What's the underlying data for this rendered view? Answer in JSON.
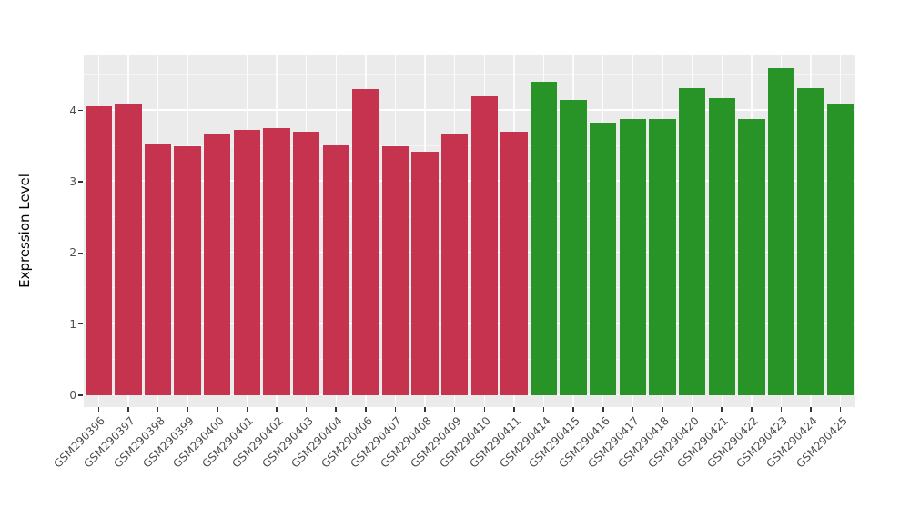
{
  "figure": {
    "background": "#FFFFFF",
    "panel_background": "#EBEBEB",
    "gridline_color": "#FFFFFF",
    "axis_text_color": "#4D4D4D",
    "tick_mark_color": "#333333"
  },
  "chart_data": {
    "type": "bar",
    "title": "",
    "xlabel": "",
    "ylabel": "Expression Level",
    "ylim": [
      0,
      4.78
    ],
    "yticks": [
      0,
      1,
      2,
      3,
      4
    ],
    "yticks_minor": [
      0.5,
      1.5,
      2.5,
      3.5,
      4.5
    ],
    "grid": true,
    "legend_position": "none",
    "categories": [
      "GSM290396",
      "GSM290397",
      "GSM290398",
      "GSM290399",
      "GSM290400",
      "GSM290401",
      "GSM290402",
      "GSM290403",
      "GSM290404",
      "GSM290406",
      "GSM290407",
      "GSM290408",
      "GSM290409",
      "GSM290410",
      "GSM290411",
      "GSM290414",
      "GSM290415",
      "GSM290416",
      "GSM290417",
      "GSM290418",
      "GSM290420",
      "GSM290421",
      "GSM290422",
      "GSM290423",
      "GSM290424",
      "GSM290425"
    ],
    "values": [
      4.06,
      4.08,
      3.53,
      3.49,
      3.66,
      3.72,
      3.75,
      3.7,
      3.51,
      4.3,
      3.49,
      3.42,
      3.67,
      4.2,
      3.7,
      4.4,
      4.15,
      3.83,
      3.88,
      3.88,
      4.31,
      4.17,
      3.88,
      4.59,
      4.31,
      4.09
    ],
    "groups": [
      "red",
      "red",
      "red",
      "red",
      "red",
      "red",
      "red",
      "red",
      "red",
      "red",
      "red",
      "red",
      "red",
      "red",
      "red",
      "green",
      "green",
      "green",
      "green",
      "green",
      "green",
      "green",
      "green",
      "green",
      "green",
      "green"
    ],
    "colors": {
      "red": "#C5334E",
      "green": "#289428"
    }
  }
}
